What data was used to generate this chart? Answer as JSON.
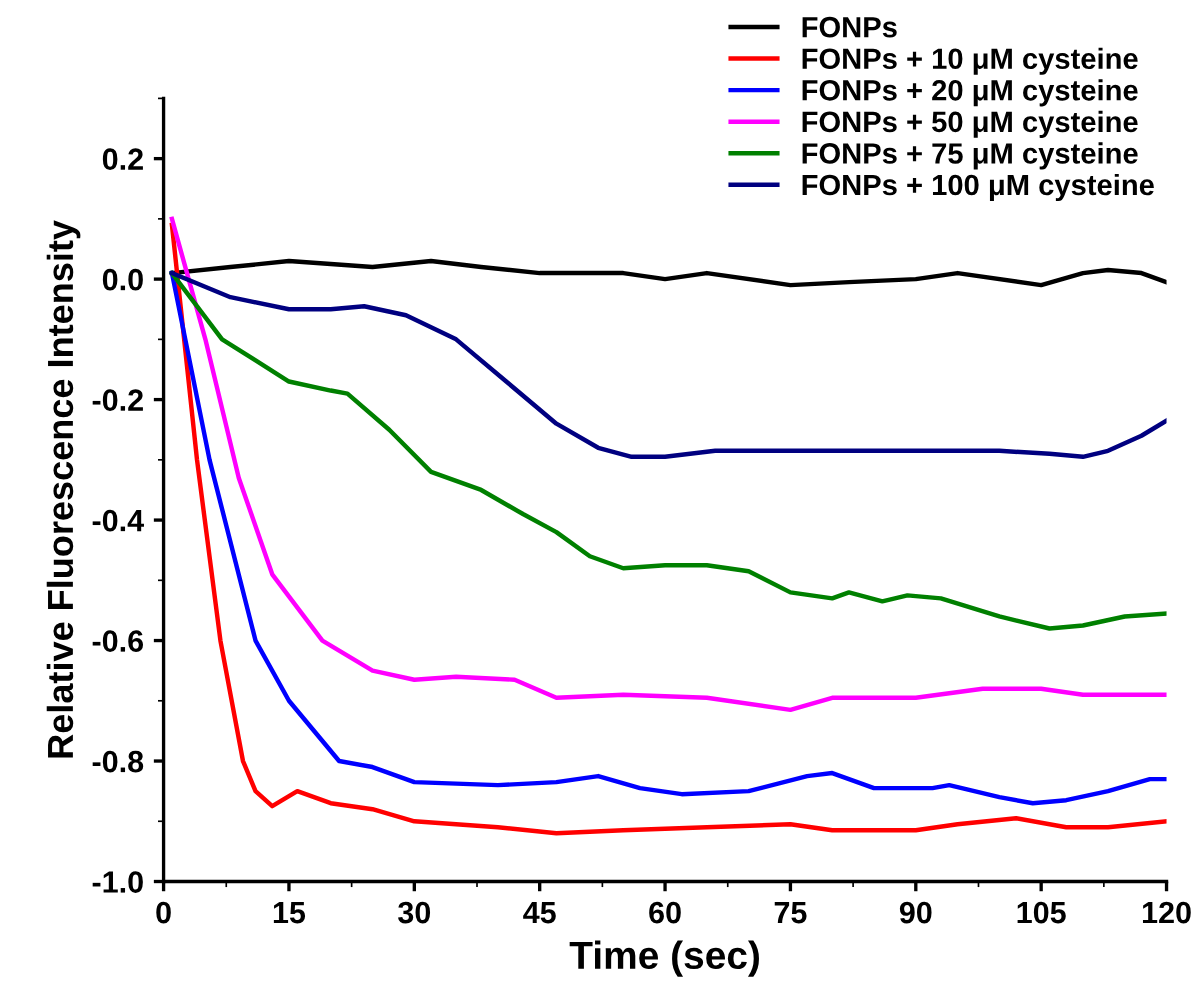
{
  "chart_data": {
    "type": "line",
    "xlabel": "Time (sec)",
    "ylabel": "Relative Fluorescence Intensity",
    "xlim": [
      0,
      120
    ],
    "xticks": [
      0,
      15,
      30,
      45,
      60,
      75,
      90,
      105,
      120
    ],
    "ylim": [
      -1.0,
      0.3
    ],
    "yticks": [
      {
        "value": -1.0,
        "label": "-1.0"
      },
      {
        "value": -0.8,
        "label": "-0.8"
      },
      {
        "value": -0.6,
        "label": "-0.6"
      },
      {
        "value": -0.4,
        "label": "-0.4"
      },
      {
        "value": -0.2,
        "label": "-0.2"
      },
      {
        "value": 0.0,
        "label": "0.0"
      },
      {
        "value": 0.2,
        "label": "0.2"
      }
    ],
    "grid": false,
    "legend": "top right",
    "marker": "none",
    "line_style": "solid",
    "series": [
      {
        "name": "FONPs",
        "color": "#000000",
        "x": [
          1,
          8,
          15,
          20,
          25,
          32,
          38,
          45,
          55,
          60,
          65,
          75,
          82,
          90,
          95,
          105,
          110,
          113,
          117,
          120
        ],
        "values": [
          0.01,
          0.02,
          0.03,
          0.025,
          0.02,
          0.03,
          0.02,
          0.01,
          0.01,
          0.0,
          0.01,
          -0.01,
          -0.005,
          0.0,
          0.01,
          -0.01,
          0.01,
          0.015,
          0.01,
          -0.005
        ]
      },
      {
        "name": "FONPs + 10 μM cysteine",
        "color": "#ff0000",
        "x": [
          1,
          4,
          6.8,
          9.5,
          11,
          13,
          16,
          20,
          25,
          30,
          40,
          47,
          55,
          65,
          75,
          80,
          90,
          95,
          102,
          108,
          113,
          120
        ],
        "values": [
          0.09,
          -0.3,
          -0.6,
          -0.8,
          -0.85,
          -0.875,
          -0.85,
          -0.87,
          -0.88,
          -0.9,
          -0.91,
          -0.92,
          -0.915,
          -0.91,
          -0.905,
          -0.915,
          -0.915,
          -0.905,
          -0.895,
          -0.91,
          -0.91,
          -0.9
        ]
      },
      {
        "name": "FONPs + 20 μM cysteine",
        "color": "#0000ff",
        "x": [
          1,
          5.5,
          11,
          15,
          21,
          25,
          30,
          40,
          47,
          52,
          57,
          62,
          70,
          77,
          80,
          85,
          92,
          94,
          100,
          104,
          108,
          113,
          118,
          120
        ],
        "values": [
          0.01,
          -0.3,
          -0.6,
          -0.7,
          -0.8,
          -0.81,
          -0.835,
          -0.84,
          -0.835,
          -0.825,
          -0.845,
          -0.855,
          -0.85,
          -0.825,
          -0.82,
          -0.845,
          -0.845,
          -0.84,
          -0.86,
          -0.87,
          -0.865,
          -0.85,
          -0.83,
          -0.83
        ]
      },
      {
        "name": "FONPs + 50 μM cysteine",
        "color": "#ff00ff",
        "x": [
          1,
          5,
          9,
          13,
          19,
          25,
          30,
          35,
          42,
          47,
          55,
          65,
          75,
          80,
          90,
          98,
          105,
          110,
          120
        ],
        "values": [
          0.1,
          -0.1,
          -0.33,
          -0.49,
          -0.6,
          -0.65,
          -0.665,
          -0.66,
          -0.665,
          -0.695,
          -0.69,
          -0.695,
          -0.715,
          -0.695,
          -0.695,
          -0.68,
          -0.68,
          -0.69,
          -0.69
        ]
      },
      {
        "name": "FONPs + 75 μM cysteine",
        "color": "#008000",
        "x": [
          1,
          7,
          15,
          20,
          22,
          27,
          32,
          38,
          43,
          47,
          51,
          55,
          60,
          65,
          70,
          75,
          80,
          82,
          86,
          89,
          93,
          100,
          106,
          110,
          115,
          120
        ],
        "values": [
          0.01,
          -0.1,
          -0.17,
          -0.185,
          -0.19,
          -0.25,
          -0.32,
          -0.35,
          -0.39,
          -0.42,
          -0.46,
          -0.48,
          -0.475,
          -0.475,
          -0.485,
          -0.52,
          -0.53,
          -0.52,
          -0.535,
          -0.525,
          -0.53,
          -0.56,
          -0.58,
          -0.575,
          -0.56,
          -0.555
        ]
      },
      {
        "name": "FONPs + 100 μM cysteine",
        "color": "#000080",
        "x": [
          1,
          8,
          15,
          20,
          24,
          29,
          35,
          41,
          47,
          52,
          56,
          60,
          66,
          80,
          100,
          106,
          110,
          113,
          117,
          120
        ],
        "values": [
          0.01,
          -0.03,
          -0.05,
          -0.05,
          -0.045,
          -0.06,
          -0.1,
          -0.17,
          -0.24,
          -0.28,
          -0.295,
          -0.295,
          -0.285,
          -0.285,
          -0.285,
          -0.29,
          -0.295,
          -0.285,
          -0.26,
          -0.235
        ]
      }
    ]
  }
}
